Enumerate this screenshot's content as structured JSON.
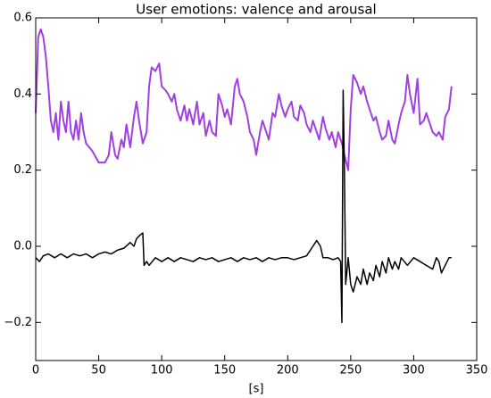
{
  "chart_data": {
    "type": "line",
    "title": "User emotions: valence and arousal",
    "xlabel": "[s]",
    "xlim": [
      0,
      350
    ],
    "xticks": [
      0,
      50,
      100,
      150,
      200,
      250,
      300,
      350
    ],
    "ylim": [
      -0.3,
      0.6
    ],
    "yticks": [
      {
        "value": -0.2,
        "label": "−0.2"
      },
      {
        "value": 0,
        "label": "0.0"
      },
      0.2,
      0.4,
      0.6
    ],
    "series": [
      {
        "color": "#a040e0",
        "x": [
          0,
          2,
          4,
          6,
          8,
          10,
          12,
          14,
          16,
          18,
          20,
          22,
          24,
          26,
          28,
          30,
          32,
          34,
          36,
          38,
          40,
          45,
          50,
          55,
          58,
          60,
          63,
          65,
          68,
          70,
          72,
          75,
          78,
          80,
          82,
          85,
          88,
          90,
          92,
          95,
          98,
          100,
          103,
          105,
          108,
          110,
          112,
          115,
          118,
          120,
          122,
          125,
          128,
          130,
          133,
          135,
          138,
          140,
          143,
          145,
          148,
          150,
          152,
          155,
          158,
          160,
          162,
          165,
          168,
          170,
          173,
          175,
          178,
          180,
          183,
          185,
          188,
          190,
          193,
          195,
          198,
          200,
          203,
          205,
          208,
          210,
          213,
          215,
          218,
          220,
          222,
          225,
          228,
          230,
          233,
          235,
          238,
          240,
          243,
          245,
          248,
          250,
          252,
          255,
          258,
          260,
          263,
          265,
          268,
          270,
          273,
          275,
          278,
          280,
          283,
          285,
          288,
          290,
          293,
          295,
          297,
          300,
          303,
          305,
          308,
          310,
          313,
          315,
          318,
          320,
          323,
          325,
          328,
          330
        ],
        "values": [
          0.35,
          0.55,
          0.57,
          0.55,
          0.5,
          0.42,
          0.33,
          0.3,
          0.35,
          0.28,
          0.38,
          0.33,
          0.3,
          0.38,
          0.3,
          0.28,
          0.33,
          0.28,
          0.35,
          0.3,
          0.27,
          0.25,
          0.22,
          0.22,
          0.24,
          0.3,
          0.24,
          0.23,
          0.28,
          0.26,
          0.32,
          0.26,
          0.34,
          0.38,
          0.33,
          0.27,
          0.3,
          0.42,
          0.47,
          0.46,
          0.48,
          0.42,
          0.41,
          0.4,
          0.38,
          0.4,
          0.36,
          0.33,
          0.37,
          0.33,
          0.36,
          0.32,
          0.38,
          0.32,
          0.35,
          0.29,
          0.33,
          0.3,
          0.29,
          0.4,
          0.37,
          0.34,
          0.36,
          0.32,
          0.42,
          0.44,
          0.4,
          0.38,
          0.34,
          0.3,
          0.28,
          0.24,
          0.3,
          0.33,
          0.3,
          0.28,
          0.35,
          0.34,
          0.4,
          0.37,
          0.34,
          0.36,
          0.38,
          0.34,
          0.33,
          0.37,
          0.35,
          0.32,
          0.3,
          0.33,
          0.31,
          0.28,
          0.34,
          0.31,
          0.28,
          0.3,
          0.26,
          0.3,
          0.27,
          0.24,
          0.2,
          0.36,
          0.45,
          0.43,
          0.4,
          0.42,
          0.38,
          0.36,
          0.33,
          0.34,
          0.3,
          0.28,
          0.29,
          0.33,
          0.28,
          0.27,
          0.32,
          0.35,
          0.38,
          0.45,
          0.4,
          0.35,
          0.44,
          0.32,
          0.33,
          0.35,
          0.32,
          0.3,
          0.29,
          0.3,
          0.28,
          0.34,
          0.36,
          0.42
        ]
      },
      {
        "color": "#000000",
        "x": [
          0,
          3,
          6,
          10,
          15,
          20,
          25,
          30,
          35,
          40,
          45,
          50,
          55,
          60,
          65,
          70,
          75,
          78,
          80,
          83,
          85,
          86,
          88,
          90,
          95,
          100,
          105,
          110,
          115,
          120,
          125,
          130,
          135,
          140,
          145,
          150,
          155,
          160,
          165,
          170,
          175,
          180,
          185,
          190,
          195,
          200,
          205,
          210,
          215,
          220,
          223,
          226,
          228,
          232,
          236,
          240,
          242,
          243,
          244,
          245,
          246,
          248,
          250,
          252,
          255,
          258,
          260,
          263,
          265,
          268,
          270,
          273,
          275,
          278,
          280,
          283,
          285,
          288,
          290,
          295,
          300,
          305,
          310,
          315,
          318,
          320,
          322,
          325,
          328,
          330
        ],
        "values": [
          -0.03,
          -0.04,
          -0.025,
          -0.02,
          -0.03,
          -0.02,
          -0.03,
          -0.02,
          -0.025,
          -0.02,
          -0.03,
          -0.02,
          -0.015,
          -0.02,
          -0.01,
          -0.005,
          0.01,
          0,
          0.02,
          0.03,
          0.035,
          -0.05,
          -0.04,
          -0.05,
          -0.03,
          -0.04,
          -0.03,
          -0.04,
          -0.03,
          -0.035,
          -0.04,
          -0.03,
          -0.035,
          -0.03,
          -0.04,
          -0.035,
          -0.03,
          -0.04,
          -0.03,
          -0.035,
          -0.03,
          -0.04,
          -0.03,
          -0.035,
          -0.03,
          -0.03,
          -0.035,
          -0.03,
          -0.025,
          0,
          0.015,
          0,
          -0.03,
          -0.03,
          -0.035,
          -0.03,
          -0.04,
          -0.2,
          0.41,
          0.2,
          -0.1,
          -0.03,
          -0.1,
          -0.12,
          -0.08,
          -0.1,
          -0.06,
          -0.1,
          -0.07,
          -0.09,
          -0.05,
          -0.08,
          -0.04,
          -0.07,
          -0.03,
          -0.06,
          -0.04,
          -0.06,
          -0.03,
          -0.05,
          -0.03,
          -0.04,
          -0.05,
          -0.06,
          -0.03,
          -0.04,
          -0.07,
          -0.05,
          -0.03,
          -0.03
        ]
      }
    ]
  }
}
